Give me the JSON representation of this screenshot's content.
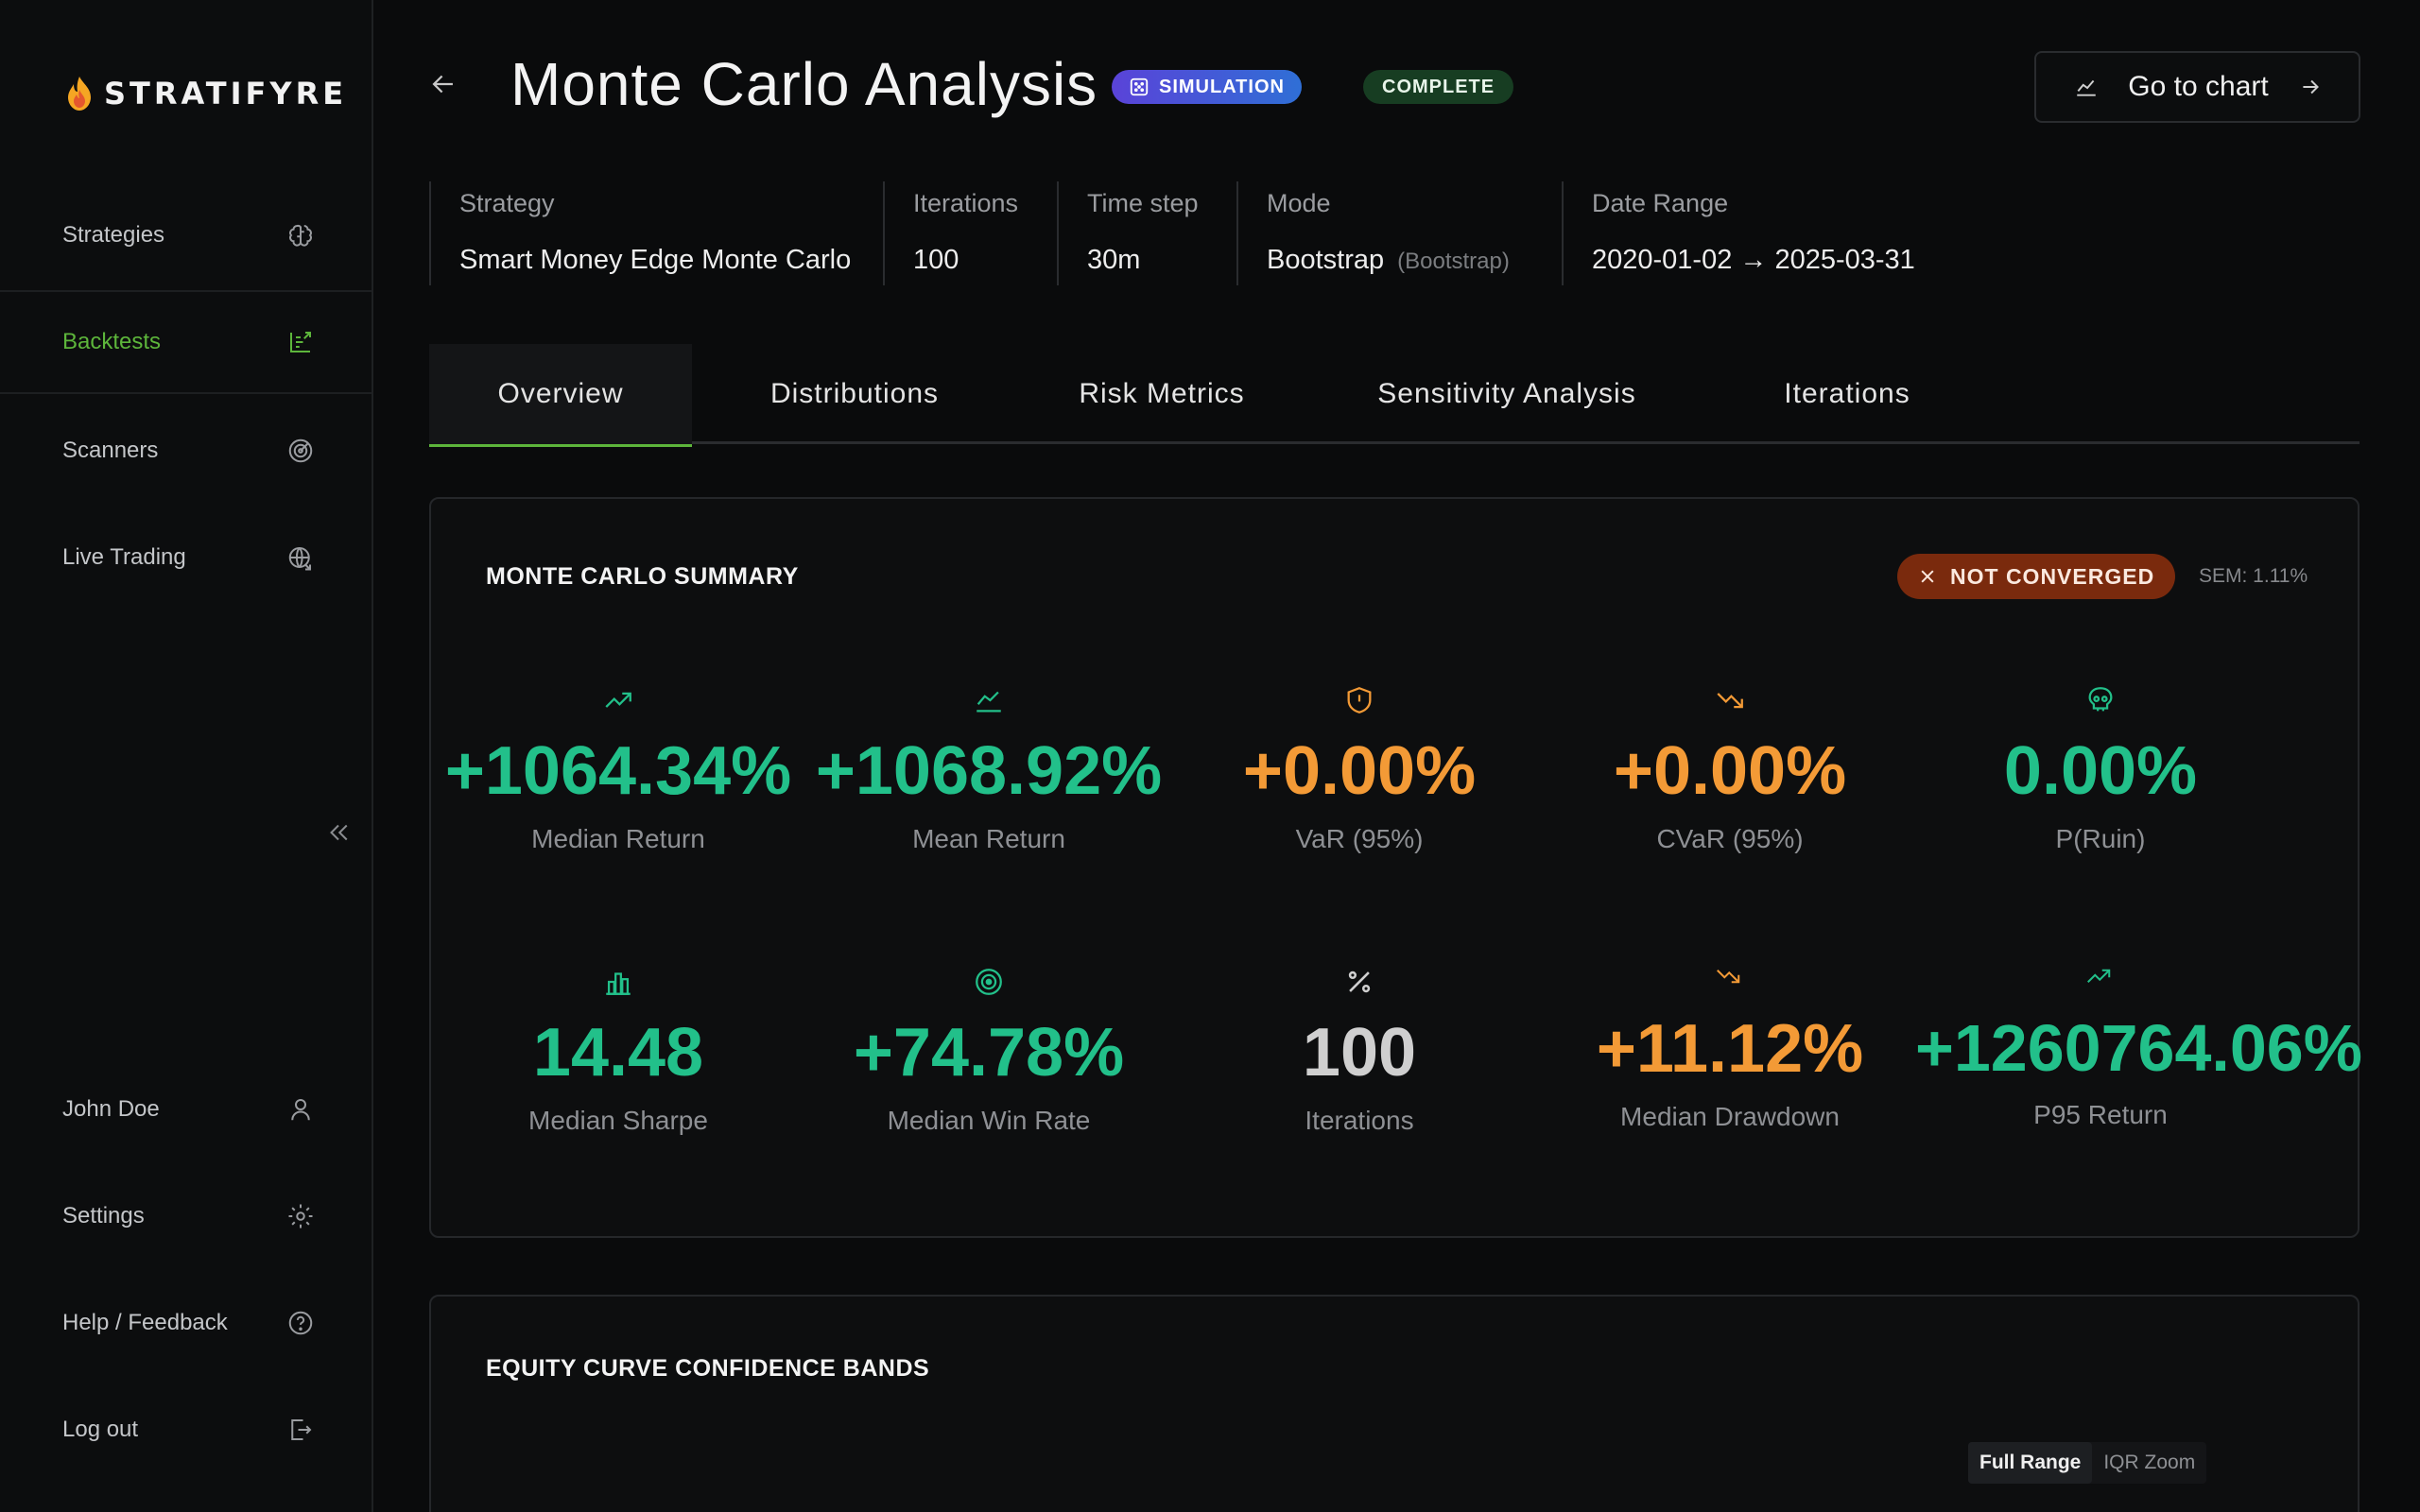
{
  "brand": {
    "name": "STRATIFYRE"
  },
  "sidebar": {
    "items": [
      {
        "label": "Strategies",
        "icon": "brain-icon"
      },
      {
        "label": "Backtests",
        "icon": "backtest-icon"
      },
      {
        "label": "Scanners",
        "icon": "radar-icon"
      },
      {
        "label": "Live Trading",
        "icon": "globe-icon"
      }
    ],
    "bottom": [
      {
        "label": "John Doe",
        "icon": "user-icon"
      },
      {
        "label": "Settings",
        "icon": "gear-icon"
      },
      {
        "label": "Help / Feedback",
        "icon": "help-icon"
      },
      {
        "label": "Log out",
        "icon": "logout-icon"
      }
    ]
  },
  "header": {
    "title": "Monte Carlo Analysis",
    "badge_simulation": "SIMULATION",
    "badge_status": "COMPLETE",
    "goto_label": "Go to chart"
  },
  "info": {
    "strategy_label": "Strategy",
    "strategy": "Smart Money Edge Monte Carlo",
    "iterations_label": "Iterations",
    "iterations": "100",
    "timestep_label": "Time step",
    "timestep": "30m",
    "mode_label": "Mode",
    "mode": "Bootstrap",
    "mode_sub": "(Bootstrap)",
    "range_label": "Date Range",
    "range": "2020-01-02 → 2025-03-31"
  },
  "tabs": [
    "Overview",
    "Distributions",
    "Risk Metrics",
    "Sensitivity Analysis",
    "Iterations"
  ],
  "summary": {
    "title": "MONTE CARLO SUMMARY",
    "convergence": "NOT CONVERGED",
    "sem": "SEM: 1.11%",
    "metrics": [
      {
        "value": "+1064.34%",
        "label": "Median Return",
        "icon": "trend-up-icon",
        "tone": "green"
      },
      {
        "value": "+1068.92%",
        "label": "Mean Return",
        "icon": "area-chart-icon",
        "tone": "green"
      },
      {
        "value": "+0.00%",
        "label": "VaR (95%)",
        "icon": "shield-icon",
        "tone": "orange"
      },
      {
        "value": "+0.00%",
        "label": "CVaR (95%)",
        "icon": "trend-down-icon",
        "tone": "orange"
      },
      {
        "value": "0.00%",
        "label": "P(Ruin)",
        "icon": "skull-icon",
        "tone": "green"
      },
      {
        "value": "14.48",
        "label": "Median Sharpe",
        "icon": "bar-chart-icon",
        "tone": "green"
      },
      {
        "value": "+74.78%",
        "label": "Median Win Rate",
        "icon": "target-icon",
        "tone": "green"
      },
      {
        "value": "100",
        "label": "Iterations",
        "icon": "percent-icon",
        "tone": "gray"
      },
      {
        "value": "+11.12%",
        "label": "Median Drawdown",
        "icon": "trend-down-icon",
        "tone": "orange"
      },
      {
        "value": "+1260764.06%",
        "label": "P95 Return",
        "icon": "trend-up-icon",
        "tone": "green"
      }
    ]
  },
  "equity": {
    "title": "EQUITY CURVE CONFIDENCE BANDS",
    "range_full": "Full Range",
    "range_iqr": "IQR Zoom"
  },
  "colors": {
    "accent": "#5db53b",
    "positive": "#22c08a",
    "warning": "#f39a36",
    "danger_badge": "#7a2a0d"
  }
}
